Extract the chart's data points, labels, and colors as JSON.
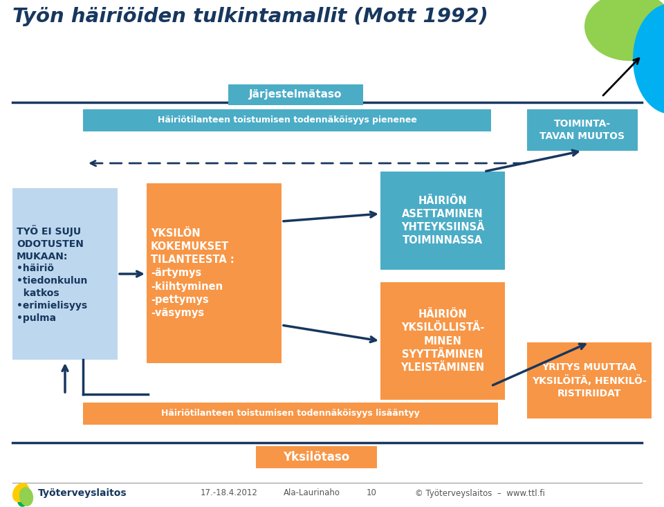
{
  "title": "Työn häiriöiden tulkintamallit (Mott 1992)",
  "title_color": "#17375E",
  "bg_color": "#FFFFFF",
  "box_blue_light": "#BDD7EE",
  "box_blue_mid": "#4BACC6",
  "box_orange": "#F79646",
  "text_dark_blue": "#17375E",
  "arrow_color": "#17375E",
  "label_jartaso": "Järjestelmätaso",
  "label_ykstaso": "Yksilötaso",
  "box1_lines": [
    "TYÖ EI SUJU",
    "ODOTUSTEN",
    "MUKAAN:",
    "•häiriö",
    "•tiedonkulun",
    "  katkos",
    "•erimielisyys",
    "•pulma"
  ],
  "box2_lines": [
    "YKSILÖN",
    "KOKEMUKSET",
    "TILANTEESTA :",
    "-ärtymys",
    "-kiihtyminen",
    "-pettymys",
    "-väsymys"
  ],
  "box3_lines": [
    "HÄIRIÖN",
    "ASETTAMINEN",
    "YHTEYKSIINSÄ",
    "TOIMINNASSA"
  ],
  "box4_lines": [
    "HÄIRIÖN",
    "YKSILÖLLISTÄ-",
    "MINEN",
    "SYYTTÄMINEN",
    "YLEISTÄMINEN"
  ],
  "box5_lines": [
    "TOIMINTA-",
    "TAVAN MUUTOS"
  ],
  "box6_lines": [
    "YRITYS MUUTTAA",
    "YKSILÖITÄ, HENKILÖ-",
    "RISTIRIIDAT"
  ],
  "top_band_text": "Häiriötilanteen toistumisen todennäköisyys pienenee",
  "bot_band_text": "Häiriötilanteen toistumisen todennäköisyys lisääntyy",
  "footer_left": "17.-18.4.2012     Ala-Laurinaho          10          © Työterveyslaitos  –  www.ttl.fi",
  "logo_text": "Työterveyslaitos"
}
